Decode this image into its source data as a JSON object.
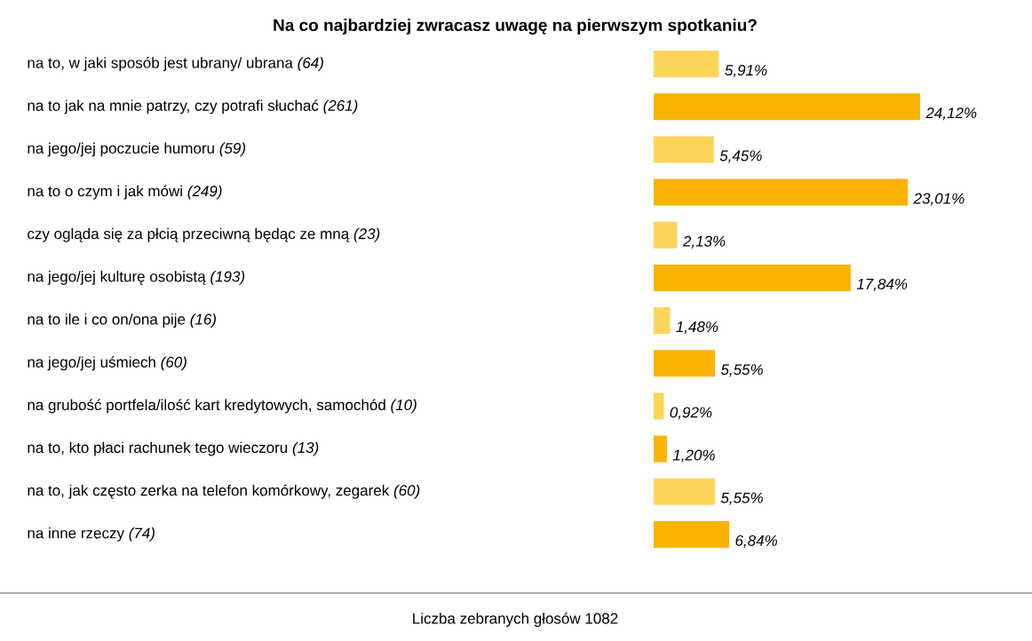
{
  "chart_data": {
    "type": "bar",
    "orientation": "horizontal",
    "title": "Na co najbardziej zwracasz uwagę na pierwszym spotkaniu?",
    "categories": [
      "na to, w jaki sposób jest ubrany/ ubrana *(64)*",
      "na to jak na mnie patrzy, czy potrafi słuchać *(261)*",
      "na jego/jej poczucie humoru *(59)*",
      "na to o czym i jak mówi *(249)*",
      "czy ogląda się za płcią przeciwną będąc ze mną *(23)*",
      "na jego/jej kulturę osobistą *(193)*",
      "na to ile i co on/ona pije *(16)*",
      "na jego/jej uśmiech *(60)*",
      "na grubość portfela/ilość kart kredytowych, samochód *(10)*",
      "na to, kto płaci rachunek tego wieczoru *(13)*",
      "na to, jak często zerka na telefon komórkowy, zegarek *(60)*",
      "na inne rzeczy *(74)*"
    ],
    "values": [
      5.91,
      24.12,
      5.45,
      23.01,
      2.13,
      17.84,
      1.48,
      5.55,
      0.92,
      1.2,
      5.55,
      6.84
    ],
    "value_labels": [
      "5,91%",
      "24,12%",
      "5,45%",
      "23,01%",
      "2,13%",
      "17,84%",
      "1,48%",
      "5,55%",
      "0,92%",
      "1,20%",
      "5,55%",
      "6,84%"
    ],
    "colors": [
      "#fcd55a",
      "#f9b300",
      "#fcd55a",
      "#f9b300",
      "#fcd55a",
      "#f9b300",
      "#fcd55a",
      "#f9b300",
      "#fcd55a",
      "#f9b300",
      "#fcd55a",
      "#f9b300"
    ],
    "annotations": [
      "Liczba zebranych głosów 1082"
    ]
  }
}
